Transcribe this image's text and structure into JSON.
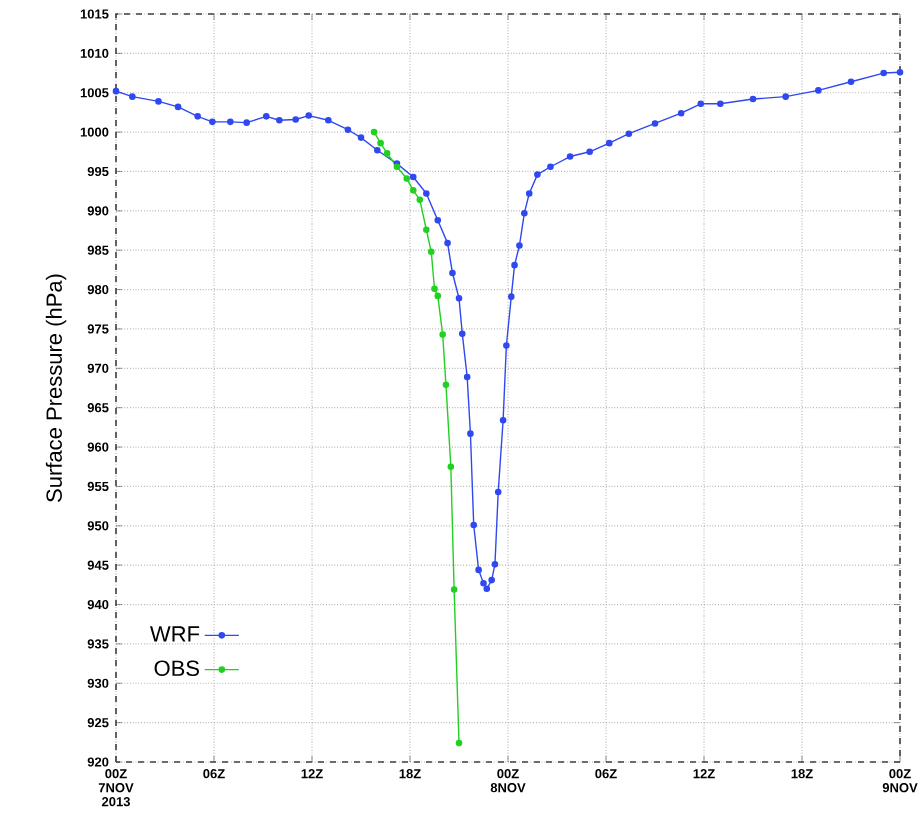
{
  "chart_data": {
    "type": "line",
    "ylabel": "Surface Pressure (hPa)",
    "xlim": [
      "2013-11-07T00:00",
      "2013-11-09T00:00"
    ],
    "ylim": [
      920,
      1015
    ],
    "xticks": [
      {
        "value": "2013-11-07T00:00",
        "label": "00Z 7NOV 2013"
      },
      {
        "value": "2013-11-07T06:00",
        "label": "06Z"
      },
      {
        "value": "2013-11-07T12:00",
        "label": "12Z"
      },
      {
        "value": "2013-11-07T18:00",
        "label": "18Z"
      },
      {
        "value": "2013-11-08T00:00",
        "label": "00Z 8NOV"
      },
      {
        "value": "2013-11-08T06:00",
        "label": "06Z"
      },
      {
        "value": "2013-11-08T12:00",
        "label": "12Z"
      },
      {
        "value": "2013-11-08T18:00",
        "label": "18Z"
      },
      {
        "value": "2013-11-09T00:00",
        "label": "00Z 9NOV"
      }
    ],
    "yticks": [
      920,
      925,
      930,
      935,
      940,
      945,
      950,
      955,
      960,
      965,
      970,
      975,
      980,
      985,
      990,
      995,
      1000,
      1005,
      1010,
      1015
    ],
    "grid": true,
    "legend": "bottom left",
    "marker": "circle",
    "line_style": "solid",
    "series": [
      {
        "name": "WRF",
        "color": "#3048f0",
        "x": [
          "2013-11-07T00:00",
          "2013-11-07T01:00",
          "2013-11-07T02:36",
          "2013-11-07T03:48",
          "2013-11-07T05:00",
          "2013-11-07T05:54",
          "2013-11-07T07:00",
          "2013-11-07T08:00",
          "2013-11-07T09:12",
          "2013-11-07T10:00",
          "2013-11-07T11:00",
          "2013-11-07T11:48",
          "2013-11-07T13:00",
          "2013-11-07T14:12",
          "2013-11-07T15:00",
          "2013-11-07T16:00",
          "2013-11-07T17:12",
          "2013-11-07T18:12",
          "2013-11-07T19:00",
          "2013-11-07T19:42",
          "2013-11-07T20:18",
          "2013-11-07T20:36",
          "2013-11-07T21:00",
          "2013-11-07T21:12",
          "2013-11-07T21:30",
          "2013-11-07T21:42",
          "2013-11-07T21:54",
          "2013-11-07T22:12",
          "2013-11-07T22:30",
          "2013-11-07T22:42",
          "2013-11-07T23:00",
          "2013-11-07T23:12",
          "2013-11-07T23:24",
          "2013-11-07T23:42",
          "2013-11-07T23:54",
          "2013-11-08T00:12",
          "2013-11-08T00:24",
          "2013-11-08T00:42",
          "2013-11-08T01:00",
          "2013-11-08T01:18",
          "2013-11-08T01:48",
          "2013-11-08T02:36",
          "2013-11-08T03:48",
          "2013-11-08T05:00",
          "2013-11-08T06:12",
          "2013-11-08T07:24",
          "2013-11-08T09:00",
          "2013-11-08T10:36",
          "2013-11-08T11:48",
          "2013-11-08T13:00",
          "2013-11-08T15:00",
          "2013-11-08T17:00",
          "2013-11-08T19:00",
          "2013-11-08T21:00",
          "2013-11-08T23:00",
          "2013-11-09T00:00"
        ],
        "values": [
          1005.2,
          1004.5,
          1003.9,
          1003.2,
          1002,
          1001.3,
          1001.3,
          1001.2,
          1002,
          1001.5,
          1001.6,
          1002.1,
          1001.5,
          1000.3,
          999.3,
          997.7,
          996,
          994.3,
          992.2,
          988.8,
          985.9,
          982.1,
          978.9,
          974.4,
          968.9,
          961.7,
          950.1,
          944.4,
          942.7,
          942,
          943.1,
          945.1,
          954.3,
          963.4,
          972.9,
          979.1,
          983.1,
          985.6,
          989.7,
          992.2,
          994.6,
          995.6,
          996.9,
          997.5,
          998.6,
          999.8,
          1001.1,
          1002.4,
          1003.6,
          1003.6,
          1004.2,
          1004.5,
          1005.3,
          1006.4,
          1007.5,
          1007.6
        ]
      },
      {
        "name": "OBS",
        "color": "#22d022",
        "x": [
          "2013-11-07T15:48",
          "2013-11-07T16:12",
          "2013-11-07T16:36",
          "2013-11-07T17:12",
          "2013-11-07T17:48",
          "2013-11-07T18:12",
          "2013-11-07T18:36",
          "2013-11-07T19:00",
          "2013-11-07T19:18",
          "2013-11-07T19:30",
          "2013-11-07T19:42",
          "2013-11-07T20:00",
          "2013-11-07T20:12",
          "2013-11-07T20:30",
          "2013-11-07T20:42",
          "2013-11-07T21:00"
        ],
        "values": [
          1000,
          998.6,
          997.3,
          995.6,
          994.1,
          992.6,
          991.4,
          987.6,
          984.8,
          980.1,
          979.2,
          974.3,
          967.9,
          957.5,
          941.9,
          922.4
        ]
      }
    ]
  }
}
